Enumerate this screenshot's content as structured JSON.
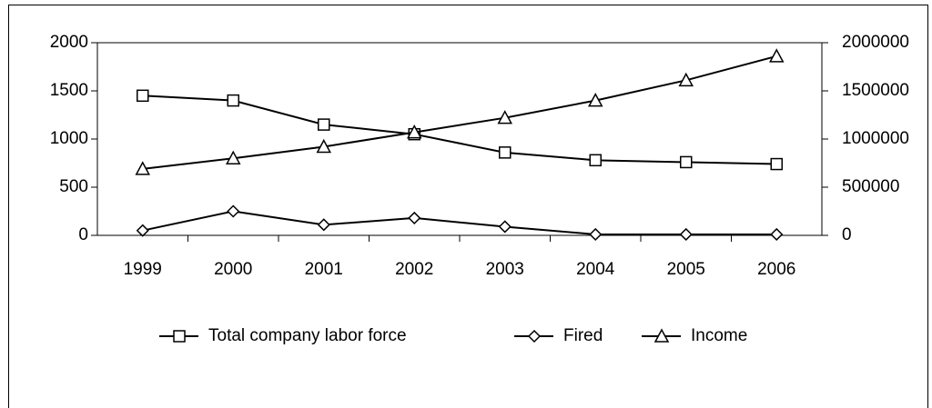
{
  "chart_data": {
    "type": "line",
    "categories": [
      "1999",
      "2000",
      "2001",
      "2002",
      "2003",
      "2004",
      "2005",
      "2006"
    ],
    "series": [
      {
        "name": "Total company labor force",
        "color": "#000000",
        "marker": "square",
        "values": [
          1450,
          1400,
          1150,
          1050,
          860,
          780,
          760,
          740
        ]
      },
      {
        "name": "Fired",
        "color": "#000000",
        "marker": "diamond",
        "values": [
          50,
          250,
          110,
          180,
          90,
          10,
          10,
          10
        ]
      },
      {
        "name": "Income",
        "color": "#000000",
        "marker": "triangle",
        "axis": "y2",
        "values": [
          690000,
          800000,
          920000,
          1070000,
          1220000,
          1400000,
          1610000,
          1860000
        ]
      }
    ],
    "ylim": [
      0,
      2000
    ],
    "yticks": [
      0,
      500,
      1000,
      1500,
      2000
    ],
    "y2lim": [
      0,
      2000000
    ],
    "y2ticks": [
      0,
      500000,
      1000000,
      1500000,
      2000000
    ],
    "grid": false,
    "legend": "bottom"
  }
}
